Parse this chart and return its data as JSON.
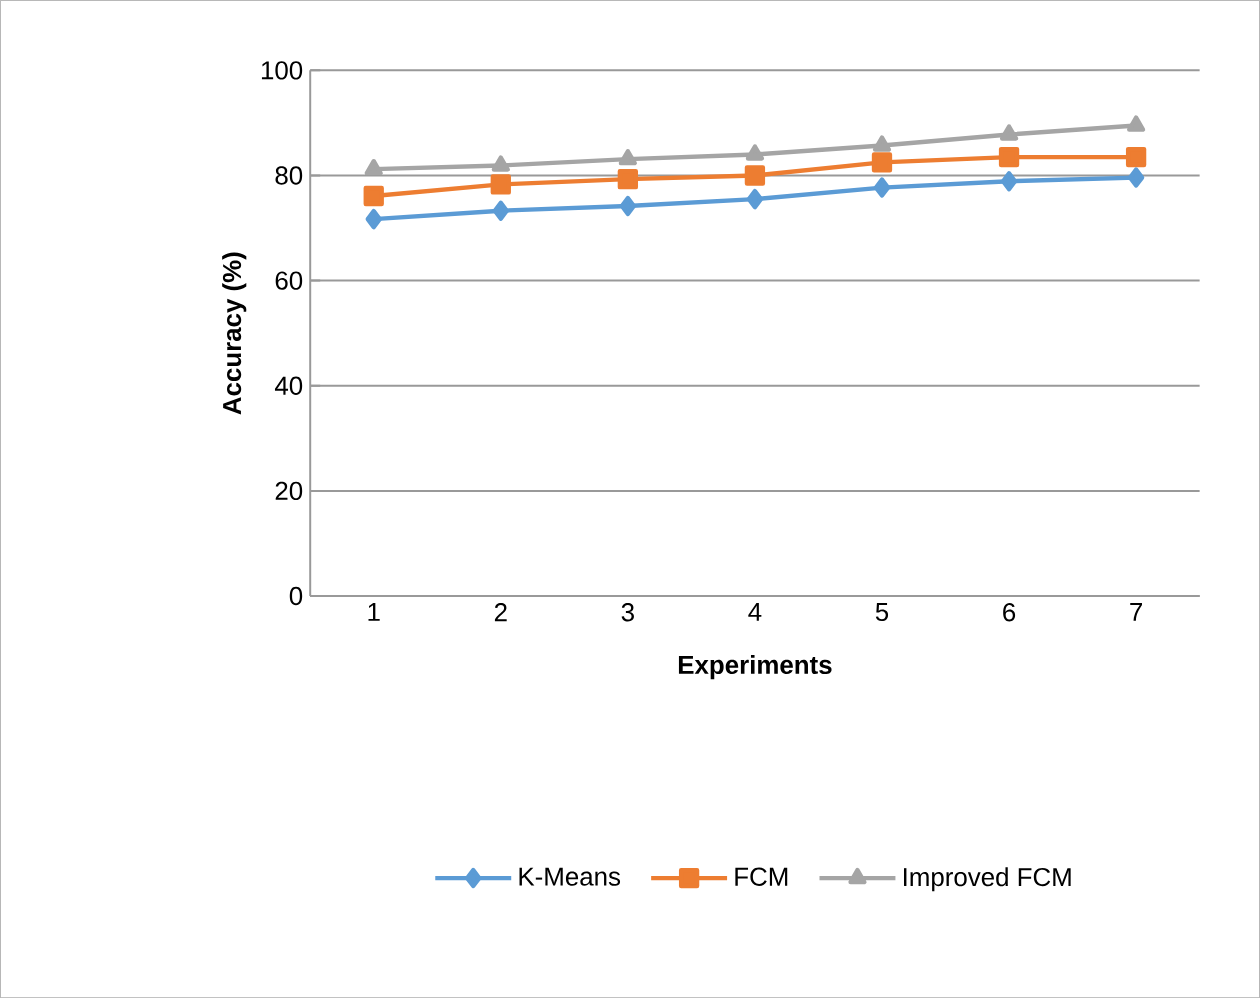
{
  "chart_data": {
    "type": "line",
    "xlabel": "Experiments",
    "ylabel": "Accuracy  (%)",
    "categories": [
      "1",
      "2",
      "3",
      "4",
      "5",
      "6",
      "7"
    ],
    "series": [
      {
        "name": "K-Means",
        "color": "#5b9bd5",
        "marker": "diamond",
        "values": [
          71.7,
          73.3,
          74.2,
          75.5,
          77.7,
          78.9,
          79.6
        ]
      },
      {
        "name": "FCM",
        "color": "#ed7d31",
        "marker": "square",
        "values": [
          76.1,
          78.3,
          79.3,
          80.0,
          82.5,
          83.5,
          83.5
        ]
      },
      {
        "name": "Improved FCM",
        "color": "#a5a5a5",
        "marker": "triangle",
        "values": [
          81.2,
          81.9,
          83.1,
          84.0,
          85.7,
          87.8,
          89.5
        ]
      }
    ],
    "ylim": [
      0,
      100
    ],
    "yticks": [
      0,
      20,
      40,
      60,
      80,
      100
    ],
    "grid": "y",
    "legend": "bottom",
    "line_style": "solid"
  }
}
